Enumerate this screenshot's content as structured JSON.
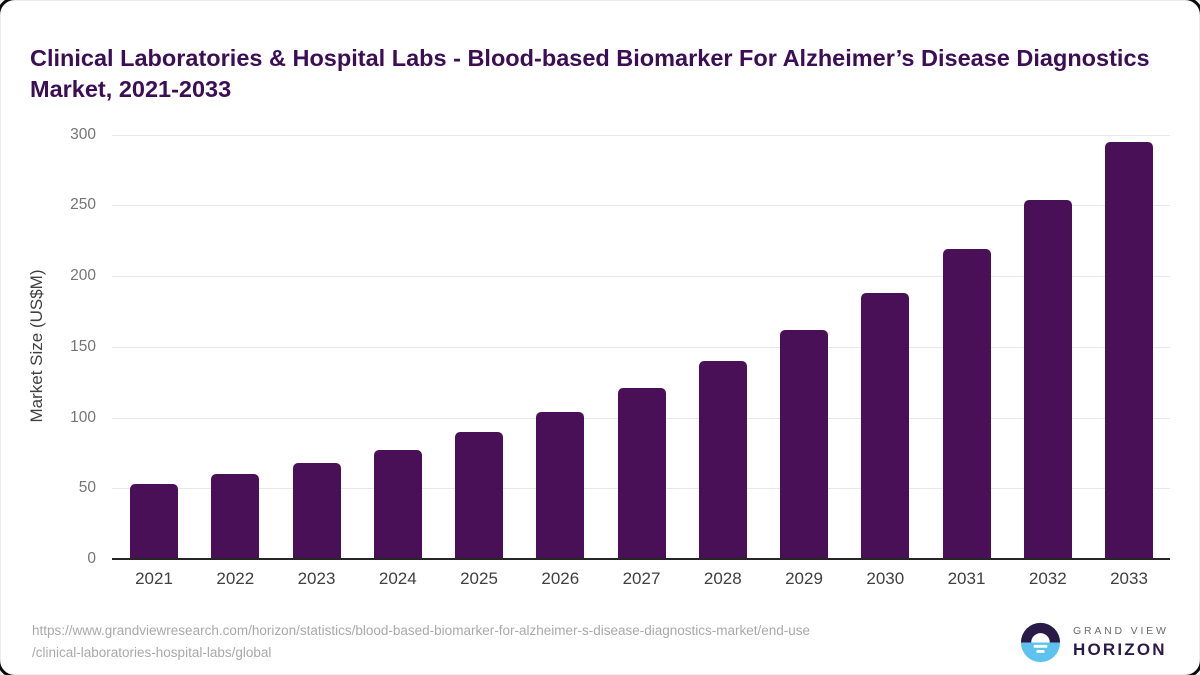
{
  "title": "Clinical Laboratories & Hospital Labs - Blood-based Biomarker For Alzheimer’s Disease Diagnostics Market, 2021-2033",
  "chart_data": {
    "type": "bar",
    "title": "Clinical Laboratories & Hospital Labs - Blood-based Biomarker For Alzheimer’s Disease Diagnostics Market, 2021-2033",
    "categories": [
      "2021",
      "2022",
      "2023",
      "2024",
      "2025",
      "2026",
      "2027",
      "2028",
      "2029",
      "2030",
      "2031",
      "2032",
      "2033"
    ],
    "values": [
      53,
      60,
      68,
      77,
      90,
      104,
      121,
      140,
      162,
      188,
      219,
      254,
      295
    ],
    "xlabel": "",
    "ylabel": "Market Size (US$M)",
    "ylim": [
      0,
      300
    ],
    "yticks": [
      0,
      50,
      100,
      150,
      200,
      250,
      300
    ],
    "grid": true,
    "legend": "none"
  },
  "footer": {
    "source_url_line1": "https://www.grandviewresearch.com/horizon/statistics/blood-based-biomarker-for-alzheimer-s-disease-diagnostics-market/end-use",
    "source_url_line2": "/clinical-laboratories-hospital-labs/global",
    "logo": {
      "top_text": "GRAND VIEW",
      "bottom_text": "HORIZON"
    }
  },
  "colors": {
    "title": "#3b0e55",
    "bar": "#4a1057",
    "grid": "#e7e7e7",
    "axis": "#262626",
    "y_tick": "#757575",
    "x_tick": "#404040",
    "url": "#a9a9a9",
    "logo_dark": "#2a1a47",
    "logo_blue": "#5ec2ef",
    "logo_white": "#ffffff",
    "logo_gray": "#6b6c6f"
  }
}
